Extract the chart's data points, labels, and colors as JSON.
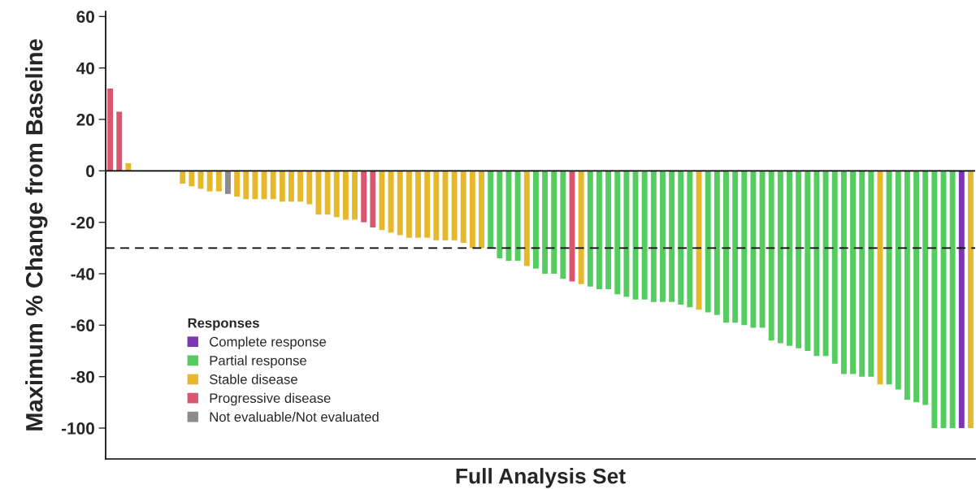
{
  "chart_data": {
    "type": "bar",
    "xlabel": "Full Analysis Set",
    "ylabel": "Maximum % Change from Baseline",
    "legend_title": "Responses",
    "legend": "bottom left",
    "tick_labels": "y",
    "ylim": [
      -112,
      62
    ],
    "yticks": [
      -100,
      -80,
      -60,
      -40,
      -20,
      0,
      20,
      40,
      60
    ],
    "ref_lines": [
      {
        "axis": "y",
        "value": 0,
        "color": "#000000",
        "line_style": "solid"
      },
      {
        "axis": "y",
        "value": -30,
        "color": "#000000",
        "line_style": "dashed"
      }
    ],
    "categories": [
      null,
      null,
      null,
      null,
      null,
      null,
      null,
      null,
      null,
      null,
      null,
      null,
      null,
      null,
      null,
      null,
      null,
      null,
      null,
      null,
      null,
      null,
      null,
      null,
      null,
      null,
      null,
      null,
      null,
      null,
      null,
      null,
      null,
      null,
      null,
      null,
      null,
      null,
      null,
      null,
      null,
      null,
      null,
      null,
      null,
      null,
      null,
      null,
      null,
      null,
      null,
      null,
      null,
      null,
      null,
      null,
      null,
      null,
      null,
      null,
      null,
      null,
      null,
      null,
      null,
      null,
      null,
      null,
      null,
      null,
      null,
      null,
      null,
      null,
      null,
      null,
      null,
      null,
      null,
      null,
      null,
      null,
      null,
      null,
      null,
      null,
      null,
      null,
      null,
      null,
      null,
      null,
      null,
      null,
      null,
      null
    ],
    "series": [
      {
        "name": "Complete response",
        "color": "#7b35b5",
        "values": [
          null,
          null,
          null,
          null,
          null,
          null,
          null,
          null,
          null,
          null,
          null,
          null,
          null,
          null,
          null,
          null,
          null,
          null,
          null,
          null,
          null,
          null,
          null,
          null,
          null,
          null,
          null,
          null,
          null,
          null,
          null,
          null,
          null,
          null,
          null,
          null,
          null,
          null,
          null,
          null,
          null,
          null,
          null,
          null,
          null,
          null,
          null,
          null,
          null,
          null,
          null,
          null,
          null,
          null,
          null,
          null,
          null,
          null,
          null,
          null,
          null,
          null,
          null,
          null,
          null,
          null,
          null,
          null,
          null,
          null,
          null,
          null,
          null,
          null,
          null,
          null,
          null,
          null,
          null,
          null,
          null,
          null,
          null,
          null,
          null,
          null,
          null,
          null,
          null,
          null,
          null,
          null,
          null,
          null,
          -100,
          null
        ]
      },
      {
        "name": "Partial response",
        "color": "#55cc60",
        "values": [
          null,
          null,
          null,
          null,
          null,
          null,
          null,
          null,
          null,
          null,
          null,
          null,
          null,
          null,
          null,
          null,
          null,
          null,
          null,
          null,
          null,
          null,
          null,
          null,
          null,
          null,
          null,
          null,
          null,
          null,
          null,
          null,
          null,
          null,
          null,
          null,
          null,
          null,
          null,
          null,
          null,
          null,
          -30,
          -34,
          -35,
          -35,
          null,
          -38,
          -40,
          -40,
          -42,
          null,
          null,
          -45,
          -46,
          -46,
          -48,
          -49,
          -50,
          -50,
          -51,
          -51,
          -51,
          -52,
          -53,
          null,
          -55,
          -56,
          -59,
          -59,
          -60,
          -61,
          -61,
          -66,
          -67,
          -68,
          -69,
          -70,
          -72,
          -72,
          -75,
          -79,
          -79,
          -80,
          -80,
          null,
          -83,
          -85,
          -89,
          -90,
          -91,
          -100,
          -100,
          -100,
          null,
          null
        ]
      },
      {
        "name": "Stable disease",
        "color": "#e5b82e",
        "values": [
          null,
          null,
          3,
          0,
          0,
          0,
          0,
          0,
          -5,
          -6,
          -7,
          -8,
          -8,
          null,
          -10,
          -11,
          -11,
          -11,
          -11,
          -12,
          -12,
          -12,
          -13,
          -17,
          -17,
          -18,
          -19,
          -19,
          null,
          null,
          -23,
          -24,
          -25,
          -26,
          -26,
          -26,
          -27,
          -27,
          -27,
          -28,
          -30,
          -30,
          null,
          null,
          null,
          null,
          -37,
          null,
          null,
          null,
          null,
          null,
          -44,
          null,
          null,
          null,
          null,
          null,
          null,
          null,
          null,
          null,
          null,
          null,
          null,
          -54,
          null,
          null,
          null,
          null,
          null,
          null,
          null,
          null,
          null,
          null,
          null,
          null,
          null,
          null,
          null,
          null,
          null,
          null,
          null,
          -83,
          null,
          null,
          null,
          null,
          null,
          null,
          null,
          null,
          null,
          -100
        ]
      },
      {
        "name": "Progressive disease",
        "color": "#d9566e",
        "values": [
          32,
          23,
          null,
          null,
          null,
          null,
          null,
          null,
          null,
          null,
          null,
          null,
          null,
          null,
          null,
          null,
          null,
          null,
          null,
          null,
          null,
          null,
          null,
          null,
          null,
          null,
          null,
          null,
          -20,
          -22,
          null,
          null,
          null,
          null,
          null,
          null,
          null,
          null,
          null,
          null,
          null,
          null,
          null,
          null,
          null,
          null,
          null,
          null,
          null,
          null,
          null,
          -43,
          null,
          null,
          null,
          null,
          null,
          null,
          null,
          null,
          null,
          null,
          null,
          null,
          null,
          null,
          null,
          null,
          null,
          null,
          null,
          null,
          null,
          null,
          null,
          null,
          null,
          null,
          null,
          null,
          null,
          null,
          null,
          null,
          null,
          null,
          null,
          null,
          null,
          null,
          null,
          null,
          null,
          null,
          null,
          null
        ]
      },
      {
        "name": "Not evaluable/Not evaluated",
        "color": "#8c8c8c",
        "values": [
          null,
          null,
          null,
          null,
          null,
          null,
          null,
          null,
          null,
          null,
          null,
          null,
          null,
          -9,
          null,
          null,
          null,
          null,
          null,
          null,
          null,
          null,
          null,
          null,
          null,
          null,
          null,
          null,
          null,
          null,
          null,
          null,
          null,
          null,
          null,
          null,
          null,
          null,
          null,
          null,
          null,
          null,
          null,
          null,
          null,
          null,
          null,
          null,
          null,
          null,
          null,
          null,
          null,
          null,
          null,
          null,
          null,
          null,
          null,
          null,
          null,
          null,
          null,
          null,
          null,
          null,
          null,
          null,
          null,
          null,
          null,
          null,
          null,
          null,
          null,
          null,
          null,
          null,
          null,
          null,
          null,
          null,
          null,
          null,
          null,
          null,
          null,
          null,
          null,
          null,
          null,
          null,
          null,
          null,
          null,
          null
        ]
      }
    ]
  }
}
